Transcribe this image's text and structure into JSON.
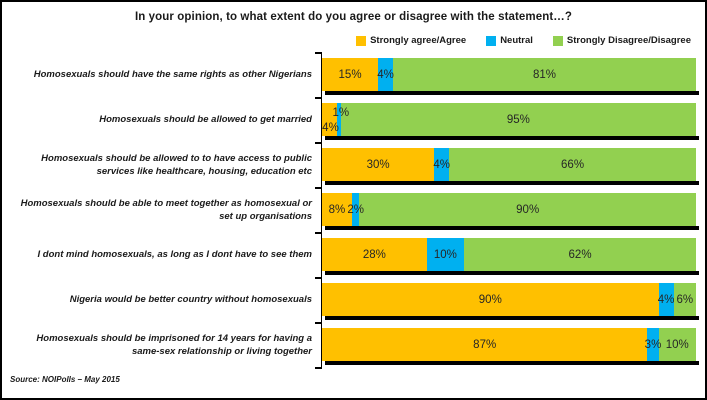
{
  "title": "In your opinion, to what extent do you agree or disagree with the statement…?",
  "source": "Source: NOIPolls – May 2015",
  "colors": {
    "agree": "#FFC000",
    "neutral": "#00B0F0",
    "disagree": "#92D050",
    "shadow": "#000000"
  },
  "chart_data": {
    "type": "bar",
    "stacked": true,
    "orientation": "horizontal",
    "title": "In your opinion, to what extent do you agree or disagree with the statement…?",
    "value_format": "percent",
    "xlim": [
      0,
      100
    ],
    "grid": false,
    "legend_position": "top-right",
    "categories": [
      "Homosexuals should have the same rights as other Nigerians",
      "Homosexuals should be allowed to get married",
      "Homosexuals should be allowed to to have access to public services like healthcare, housing, education etc",
      "Homosexuals should be able to meet together as homosexual or set up organisations",
      "I dont mind homosexuals, as long as I dont have to see them",
      "Nigeria would be better country without homosexuals",
      "Homosexuals should be imprisoned for 14 years for having a same-sex relationship or living together"
    ],
    "series": [
      {
        "name": "Strongly agree/Agree",
        "color": "#FFC000",
        "values": [
          15,
          4,
          30,
          8,
          28,
          90,
          87
        ]
      },
      {
        "name": "Neutral",
        "color": "#00B0F0",
        "values": [
          4,
          1,
          4,
          2,
          10,
          4,
          3
        ]
      },
      {
        "name": "Strongly Disagree/Disagree",
        "color": "#92D050",
        "values": [
          81,
          95,
          66,
          90,
          62,
          6,
          10
        ]
      }
    ]
  }
}
